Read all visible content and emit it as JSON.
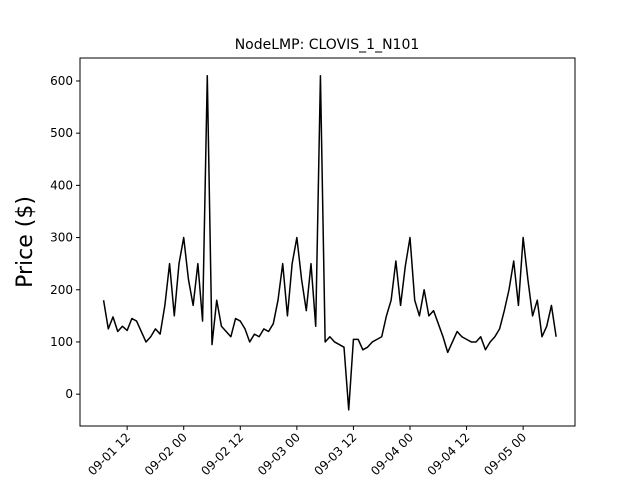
{
  "chart_data": {
    "type": "line",
    "title": "NodeLMP: CLOVIS_1_N101",
    "y_label": "Price ($)",
    "x": [
      "09-01 07",
      "09-01 08",
      "09-01 09",
      "09-01 10",
      "09-01 11",
      "09-01 12",
      "09-01 13",
      "09-01 14",
      "09-01 15",
      "09-01 16",
      "09-01 17",
      "09-01 18",
      "09-01 19",
      "09-01 20",
      "09-01 21",
      "09-01 22",
      "09-01 23",
      "09-02 00",
      "09-02 01",
      "09-02 02",
      "09-02 03",
      "09-02 04",
      "09-02 05",
      "09-02 06",
      "09-02 07",
      "09-02 08",
      "09-02 09",
      "09-02 10",
      "09-02 11",
      "09-02 12",
      "09-02 13",
      "09-02 14",
      "09-02 15",
      "09-02 16",
      "09-02 17",
      "09-02 18",
      "09-02 19",
      "09-02 20",
      "09-02 21",
      "09-02 22",
      "09-02 23",
      "09-03 00",
      "09-03 01",
      "09-03 02",
      "09-03 03",
      "09-03 04",
      "09-03 05",
      "09-03 06",
      "09-03 07",
      "09-03 08",
      "09-03 09",
      "09-03 10",
      "09-03 11",
      "09-03 12",
      "09-03 13",
      "09-03 14",
      "09-03 15",
      "09-03 16",
      "09-03 17",
      "09-03 18",
      "09-03 19",
      "09-03 20",
      "09-03 21",
      "09-03 22",
      "09-03 23",
      "09-04 00",
      "09-04 01",
      "09-04 02",
      "09-04 03",
      "09-04 04",
      "09-04 05",
      "09-04 06",
      "09-04 07",
      "09-04 08",
      "09-04 09",
      "09-04 10",
      "09-04 11",
      "09-04 12",
      "09-04 13",
      "09-04 14",
      "09-04 15",
      "09-04 16",
      "09-04 17",
      "09-04 18",
      "09-04 19",
      "09-04 20",
      "09-04 21",
      "09-04 22",
      "09-04 23",
      "09-05 00",
      "09-05 01",
      "09-05 02",
      "09-05 03",
      "09-05 04",
      "09-05 05",
      "09-05 06",
      "09-05 07"
    ],
    "series": [
      {
        "name": "CLOVIS_1_N101",
        "color": "#000000",
        "values": [
          180,
          125,
          148,
          120,
          130,
          122,
          145,
          140,
          120,
          100,
          110,
          125,
          115,
          170,
          250,
          150,
          250,
          300,
          220,
          170,
          250,
          140,
          610,
          95,
          180,
          130,
          120,
          110,
          145,
          140,
          125,
          100,
          115,
          110,
          125,
          120,
          135,
          180,
          250,
          150,
          250,
          300,
          220,
          160,
          250,
          130,
          610,
          100,
          110,
          100,
          95,
          90,
          -30,
          105,
          105,
          85,
          90,
          100,
          105,
          110,
          150,
          180,
          255,
          170,
          245,
          300,
          180,
          150,
          200,
          150,
          160,
          135,
          110,
          80,
          100,
          120,
          110,
          105,
          100,
          100,
          110,
          85,
          100,
          110,
          125,
          160,
          200,
          255,
          170,
          300,
          220,
          150,
          180,
          110,
          130,
          170,
          110
        ]
      }
    ],
    "xlim": [
      "09-01 02",
      "09-05 11"
    ],
    "xticks": [
      "09-01 12",
      "09-02 00",
      "09-02 12",
      "09-03 00",
      "09-03 12",
      "09-04 00",
      "09-04 12",
      "09-05 00"
    ],
    "ylim": [
      -61,
      644
    ],
    "yticks": [
      0,
      100,
      200,
      300,
      400,
      500,
      600
    ]
  }
}
